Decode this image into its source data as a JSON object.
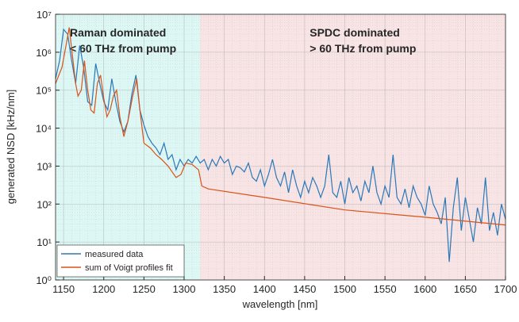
{
  "chart_data": {
    "type": "line",
    "xlabel": "wavelength [nm]",
    "ylabel": "generated NSD [kHz/nm]",
    "xlim": [
      1140,
      1700
    ],
    "xticks": [
      1150,
      1200,
      1250,
      1300,
      1350,
      1400,
      1450,
      1500,
      1550,
      1600,
      1650,
      1700
    ],
    "ylim": [
      1,
      10000000
    ],
    "yscale": "log",
    "yticks": [
      {
        "value": 1,
        "label": "10⁰"
      },
      {
        "value": 10,
        "label": "10¹"
      },
      {
        "value": 100,
        "label": "10²"
      },
      {
        "value": 1000,
        "label": "10³"
      },
      {
        "value": 10000,
        "label": "10⁴"
      },
      {
        "value": 100000,
        "label": "10⁵"
      },
      {
        "value": 1000000,
        "label": "10⁶"
      },
      {
        "value": 10000000,
        "label": "10⁷"
      }
    ],
    "grid": true,
    "legend": "lower left",
    "regions": [
      {
        "x": [
          1140,
          1320
        ],
        "color": "#dcf7f4",
        "label": [
          "Raman dominated",
          "< 60 THz from pump"
        ]
      },
      {
        "x": [
          1320,
          1700
        ],
        "color": "#f8e4e4",
        "label": [
          "SPDC dominated",
          "> 60 THz from pump"
        ]
      }
    ],
    "series": [
      {
        "name": "measured data",
        "color": "#2a78b8",
        "x": [
          1140,
          1145,
          1150,
          1155,
          1160,
          1165,
          1170,
          1175,
          1180,
          1185,
          1190,
          1195,
          1200,
          1205,
          1210,
          1215,
          1220,
          1225,
          1230,
          1235,
          1240,
          1245,
          1250,
          1255,
          1260,
          1265,
          1270,
          1275,
          1280,
          1285,
          1290,
          1295,
          1300,
          1305,
          1310,
          1315,
          1320,
          1325,
          1330,
          1335,
          1340,
          1345,
          1350,
          1355,
          1360,
          1365,
          1370,
          1375,
          1380,
          1385,
          1390,
          1395,
          1400,
          1405,
          1410,
          1415,
          1420,
          1425,
          1430,
          1435,
          1440,
          1445,
          1450,
          1455,
          1460,
          1465,
          1470,
          1475,
          1480,
          1485,
          1490,
          1495,
          1500,
          1505,
          1510,
          1515,
          1520,
          1525,
          1530,
          1535,
          1540,
          1545,
          1550,
          1555,
          1560,
          1565,
          1570,
          1575,
          1580,
          1585,
          1590,
          1595,
          1600,
          1605,
          1610,
          1615,
          1620,
          1625,
          1630,
          1635,
          1640,
          1645,
          1650,
          1655,
          1660,
          1665,
          1670,
          1675,
          1680,
          1685,
          1690,
          1695,
          1700
        ],
        "values": [
          200000,
          600000,
          4000000,
          3000000,
          600000,
          150000,
          1500000,
          400000,
          50000,
          40000,
          500000,
          150000,
          50000,
          30000,
          200000,
          50000,
          15000,
          8000,
          15000,
          80000,
          250000,
          30000,
          12000,
          6000,
          4000,
          3000,
          2000,
          4000,
          1500,
          2000,
          800,
          1500,
          1000,
          1500,
          1200,
          1800,
          1200,
          1500,
          800,
          1500,
          1000,
          1800,
          1200,
          1500,
          600,
          1000,
          900,
          700,
          1200,
          500,
          400,
          800,
          300,
          600,
          1500,
          500,
          300,
          700,
          200,
          800,
          300,
          150,
          400,
          200,
          500,
          300,
          150,
          300,
          2000,
          200,
          150,
          400,
          100,
          500,
          200,
          300,
          120,
          400,
          200,
          1000,
          200,
          100,
          300,
          150,
          2000,
          150,
          100,
          250,
          80,
          300,
          150,
          100,
          50,
          300,
          100,
          60,
          30,
          150,
          3,
          80,
          500,
          20,
          150,
          40,
          10,
          80,
          30,
          500,
          20,
          60,
          15,
          100,
          40
        ]
      },
      {
        "name": "sum of Voigt profiles fit",
        "color": "#d95319",
        "x": [
          1140,
          1148,
          1153,
          1157,
          1161,
          1165,
          1168,
          1172,
          1176,
          1180,
          1184,
          1188,
          1192,
          1196,
          1200,
          1204,
          1208,
          1212,
          1216,
          1220,
          1225,
          1230,
          1236,
          1241,
          1245,
          1250,
          1258,
          1265,
          1272,
          1280,
          1290,
          1296,
          1302,
          1310,
          1318,
          1322,
          1330,
          1400,
          1500,
          1600,
          1700
        ],
        "values": [
          150000,
          400000,
          1500000,
          4500000,
          800000,
          150000,
          70000,
          100000,
          600000,
          100000,
          30000,
          25000,
          150000,
          250000,
          60000,
          20000,
          30000,
          70000,
          100000,
          20000,
          6000,
          15000,
          70000,
          200000,
          30000,
          4000,
          3000,
          2000,
          1500,
          1000,
          500,
          600,
          1200,
          1100,
          800,
          300,
          250,
          150,
          70,
          45,
          28
        ]
      }
    ]
  }
}
